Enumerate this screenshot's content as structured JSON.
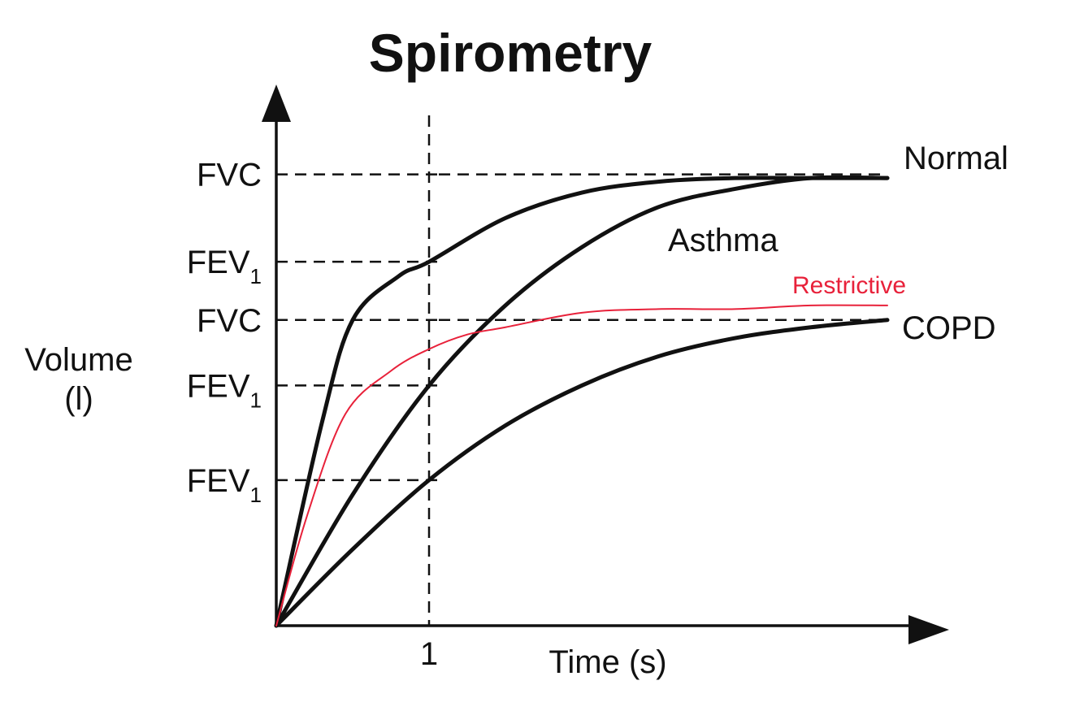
{
  "chart_data": {
    "type": "line",
    "title": "Spirometry",
    "xlabel": "Time (s)",
    "ylabel_lines": [
      "Volume",
      "(l)"
    ],
    "x_ticks": [
      {
        "x": 1,
        "label": "1"
      }
    ],
    "y_markers": [
      {
        "main": "FVC",
        "sub": "",
        "y": 6.2
      },
      {
        "main": "FEV",
        "sub": "1",
        "y": 5.0
      },
      {
        "main": "FVC",
        "sub": "",
        "y": 4.2
      },
      {
        "main": "FEV",
        "sub": "1",
        "y": 3.3
      },
      {
        "main": "FEV",
        "sub": "1",
        "y": 2.0
      }
    ],
    "xlim": [
      0,
      4
    ],
    "ylim": [
      0,
      7
    ],
    "grid": false,
    "legend": "none",
    "series": [
      {
        "name": "Normal",
        "color": "#111111",
        "points": [
          [
            0,
            0
          ],
          [
            0.3,
            2.8
          ],
          [
            0.5,
            4.2
          ],
          [
            0.8,
            4.8
          ],
          [
            1.0,
            5.0
          ],
          [
            1.5,
            5.6
          ],
          [
            2.0,
            5.95
          ],
          [
            2.5,
            6.1
          ],
          [
            3.0,
            6.15
          ],
          [
            3.5,
            6.15
          ],
          [
            4.0,
            6.15
          ]
        ]
      },
      {
        "name": "Asthma",
        "color": "#111111",
        "points": [
          [
            0,
            0
          ],
          [
            0.5,
            1.8
          ],
          [
            1.0,
            3.3
          ],
          [
            1.5,
            4.4
          ],
          [
            2.0,
            5.2
          ],
          [
            2.5,
            5.75
          ],
          [
            3.0,
            6.0
          ],
          [
            3.5,
            6.15
          ],
          [
            4.0,
            6.15
          ]
        ]
      },
      {
        "name": "COPD",
        "color": "#111111",
        "points": [
          [
            0,
            0
          ],
          [
            0.5,
            1.05
          ],
          [
            1.0,
            2.0
          ],
          [
            1.5,
            2.75
          ],
          [
            2.0,
            3.3
          ],
          [
            2.5,
            3.7
          ],
          [
            3.0,
            3.95
          ],
          [
            3.5,
            4.1
          ],
          [
            4.0,
            4.2
          ]
        ]
      },
      {
        "name": "Restrictive",
        "color": "#e8213a",
        "points": [
          [
            0,
            0
          ],
          [
            0.2,
            1.5
          ],
          [
            0.45,
            2.9
          ],
          [
            0.75,
            3.5
          ],
          [
            1.0,
            3.8
          ],
          [
            1.25,
            4.0
          ],
          [
            1.5,
            4.1
          ],
          [
            2.0,
            4.3
          ],
          [
            2.5,
            4.35
          ],
          [
            3.0,
            4.35
          ],
          [
            3.5,
            4.4
          ],
          [
            4.0,
            4.4
          ]
        ]
      }
    ]
  }
}
